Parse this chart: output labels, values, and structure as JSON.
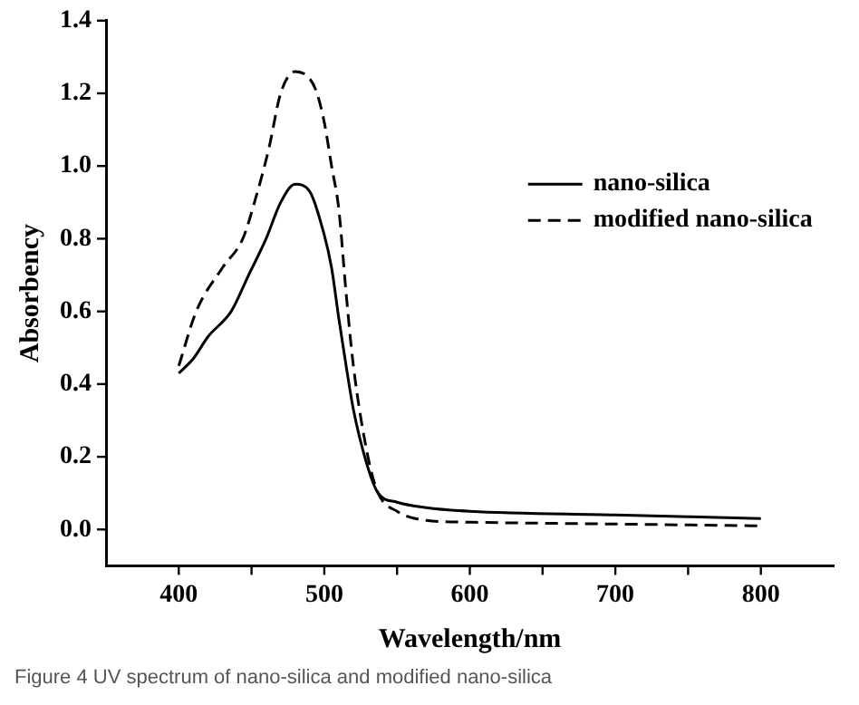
{
  "chart_data": {
    "type": "line",
    "xlabel": "Wavelength/nm",
    "ylabel": "Absorbency",
    "xlim": [
      350,
      850
    ],
    "ylim": [
      -0.1,
      1.4
    ],
    "xticks": [
      400,
      {
        "value": 450,
        "label": null
      },
      500,
      {
        "value": 550,
        "label": null
      },
      600,
      {
        "value": 650,
        "label": null
      },
      700,
      {
        "value": 750,
        "label": null
      },
      800
    ],
    "yticks": [
      {
        "value": 0,
        "label": "0.0"
      },
      {
        "value": 0.2,
        "label": "0.2"
      },
      {
        "value": 0.4,
        "label": "0.4"
      },
      {
        "value": 0.6,
        "label": "0.6"
      },
      {
        "value": 0.8,
        "label": "0.8"
      },
      {
        "value": 1,
        "label": "1.0"
      },
      {
        "value": 1.2,
        "label": "1.2"
      },
      {
        "value": 1.4,
        "label": "1.4"
      }
    ],
    "grid": false,
    "legend": "right",
    "marker": "none",
    "series": [
      {
        "name": "nano-silica",
        "color": "#000000",
        "line_style": "solid",
        "x": [
          400,
          410,
          420,
          436,
          448,
          460,
          470,
          480,
          490,
          500,
          505,
          510,
          515,
          520,
          530,
          537,
          550,
          570,
          600,
          700,
          800
        ],
        "values": [
          0.43,
          0.47,
          0.53,
          0.6,
          0.7,
          0.8,
          0.9,
          0.95,
          0.93,
          0.81,
          0.72,
          0.58,
          0.45,
          0.33,
          0.17,
          0.1,
          0.075,
          0.06,
          0.05,
          0.04,
          0.03
        ]
      },
      {
        "name": "modified nano-silica",
        "color": "#000000",
        "line_style": "dashed",
        "x": [
          400,
          412,
          430,
          444,
          452,
          462,
          470,
          480,
          490,
          495,
          500,
          505,
          510,
          515,
          520,
          530,
          537,
          550,
          570,
          600,
          700,
          800
        ],
        "values": [
          0.45,
          0.6,
          0.72,
          0.8,
          0.9,
          1.05,
          1.2,
          1.26,
          1.24,
          1.2,
          1.12,
          1,
          0.88,
          0.65,
          0.45,
          0.2,
          0.1,
          0.05,
          0.025,
          0.02,
          0.015,
          0.01
        ]
      }
    ],
    "annotations": [
      "Figure 4  UV spectrum of nano-silica and modified nano-silica"
    ]
  }
}
